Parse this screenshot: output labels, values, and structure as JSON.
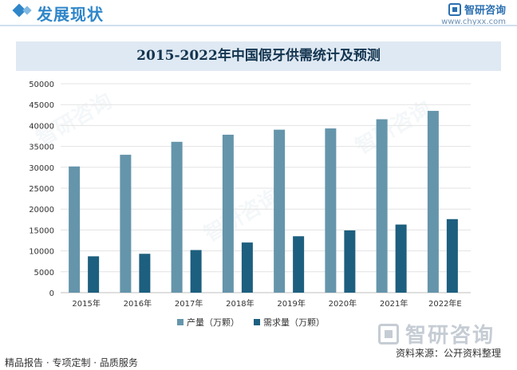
{
  "header": {
    "section_title": "发展现状",
    "brand_name": "智研咨询",
    "brand_url": "www.chyxx.com"
  },
  "chart_data": {
    "type": "bar",
    "title": "2015-2022年中国假牙供需统计及预测",
    "categories": [
      "2015年",
      "2016年",
      "2017年",
      "2018年",
      "2019年",
      "2020年",
      "2021年",
      "2022年E"
    ],
    "series": [
      {
        "name": "产量（万颗）",
        "values": [
          30200,
          33000,
          36100,
          37800,
          39000,
          39300,
          41500,
          43500
        ],
        "color": "#6595ab"
      },
      {
        "name": "需求量（万颗）",
        "values": [
          8700,
          9300,
          10200,
          12000,
          13500,
          14900,
          16300,
          17600
        ],
        "color": "#1d5f7f"
      }
    ],
    "ylim": [
      0,
      50000
    ],
    "yticks": [
      0,
      5000,
      10000,
      15000,
      20000,
      25000,
      30000,
      35000,
      40000,
      45000,
      50000
    ],
    "grid": true,
    "legend": "bottom"
  },
  "watermark": {
    "text": "智研咨询",
    "brand_text": "智研咨询"
  },
  "footer": {
    "left": "精品报告 · 专项定制 · 品质服务",
    "source": "资料来源：公开资料整理"
  }
}
